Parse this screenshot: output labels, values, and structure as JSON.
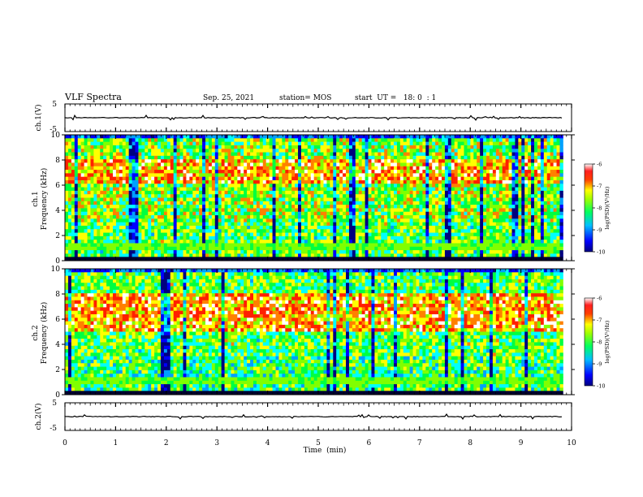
{
  "chart_data": {
    "type": "heatmap",
    "title": "VLF Spectra",
    "date": "Sep. 25, 2021",
    "station": "station= MOS",
    "start": "start  UT =   18: 0  : 1",
    "xlabel": "Time  (min)",
    "xlim": [
      0,
      10
    ],
    "x_ticks": [
      "0",
      "1",
      "2",
      "3",
      "4",
      "5",
      "6",
      "7",
      "8",
      "9",
      "10"
    ],
    "panels": [
      {
        "ylabel": "ch.1(V)",
        "ylim": [
          -5,
          5
        ],
        "y_ticks": [
          "5",
          "-5"
        ],
        "waveform_level": 0
      },
      {
        "ylabel_top": "ch.1",
        "ylabel": "Frequency (kHz)",
        "ylim": [
          0,
          10
        ],
        "y_ticks": [
          "0",
          "2",
          "4",
          "6",
          "8",
          "10"
        ],
        "signal_band_khz": [
          0.3,
          9.6
        ],
        "peak_band_khz": [
          6,
          8
        ],
        "colorbar": {
          "label": "log(PSD)(V²/Hz)",
          "ticks": [
            "-6",
            "-7",
            "-8",
            "-9",
            "-10"
          ],
          "range": [
            -10,
            -6
          ]
        }
      },
      {
        "ylabel_top": "ch.2",
        "ylabel": "Frequency (kHz)",
        "ylim": [
          0,
          10
        ],
        "y_ticks": [
          "0",
          "2",
          "4",
          "6",
          "8",
          "10"
        ],
        "signal_band_khz": [
          0.3,
          9.6
        ],
        "peak_band_khz": [
          5,
          8
        ],
        "colorbar": {
          "label": "log(PSD)(V²/Hz)",
          "ticks": [
            "-6",
            "-7",
            "-8",
            "-9",
            "-10"
          ],
          "range": [
            -10,
            -6
          ]
        }
      },
      {
        "ylabel": "ch.2(V)",
        "ylim": [
          -5,
          5
        ],
        "y_ticks": [
          "5",
          "-5"
        ],
        "waveform_level": 0
      }
    ],
    "colormap": [
      "#00007f",
      "#0000ff",
      "#00a0ff",
      "#00ffff",
      "#00ff40",
      "#80ff00",
      "#ffff00",
      "#ff8000",
      "#ff2000",
      "#ffffff"
    ]
  }
}
